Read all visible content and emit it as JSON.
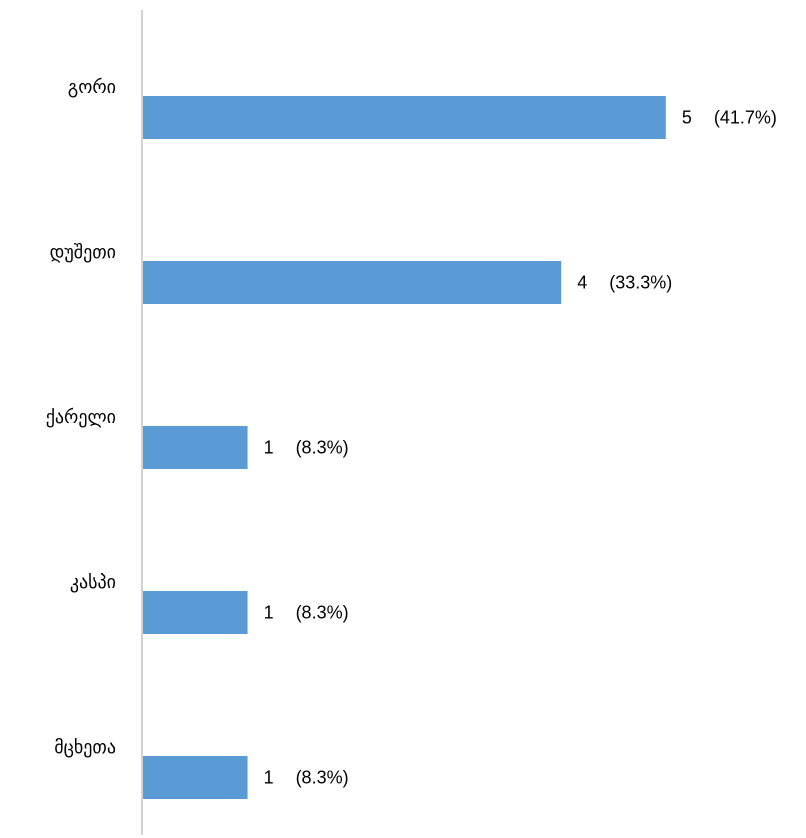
{
  "chart_data": {
    "type": "bar",
    "orientation": "horizontal",
    "categories": [
      "გორი",
      "დუშეთი",
      "ქარელი",
      "კასპი",
      "მცხეთა"
    ],
    "values": [
      5,
      4,
      1,
      1,
      1
    ],
    "percent_labels": [
      "(41.7%)",
      "(33.3%)",
      "(8.3%)",
      "(8.3%)",
      "(8.3%)"
    ],
    "xlim": [
      0,
      6.35
    ],
    "grid": false,
    "legend": "none",
    "bar_color": "#5b9bd5",
    "axis_color": "#a6a6a6"
  }
}
